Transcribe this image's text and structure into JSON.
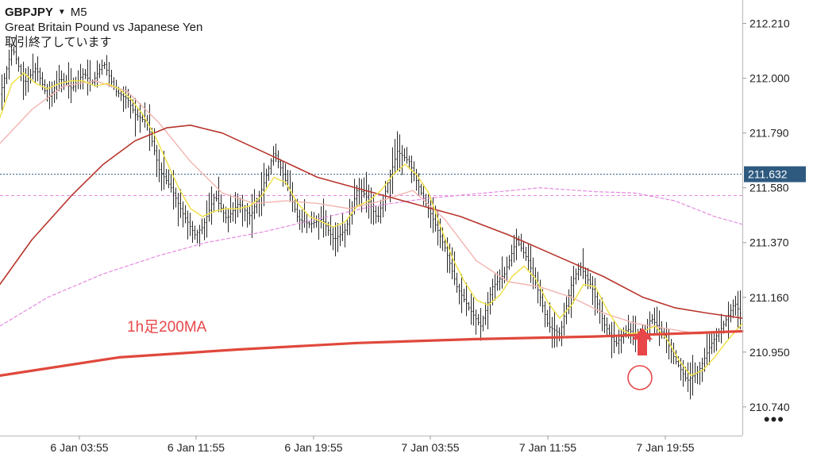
{
  "header": {
    "symbol": "GBPJPY",
    "dropdown_icon": "▼",
    "timeframe": "M5",
    "description": "Great Britain Pound vs Japanese Yen",
    "status": "取引終了しています"
  },
  "more_menu_icon": "•••",
  "annotation": {
    "ma_label": "1h足200MA",
    "arrow_icon": "up-arrow-icon",
    "marker_icon": "circle-marker-icon",
    "color": "#e8474a"
  },
  "colors": {
    "price_bars": "#2a2a2a",
    "ma_fast": "#f0e14a",
    "ma_medium": "#f2b5b0",
    "ma_slow": "#b8352c",
    "ma_1h200": "#e0483c",
    "pink_dashed": "#e48ae0",
    "current_price_line": "#2f5a80",
    "current_price_badge": "#2f5a80"
  },
  "chart_data": {
    "type": "line",
    "title": "GBPJPY M5",
    "ylim": [
      210.63,
      212.3
    ],
    "xlim": [
      0,
      935
    ],
    "y_ticks": [
      212.21,
      212.0,
      211.79,
      211.58,
      211.37,
      211.16,
      210.95,
      210.74
    ],
    "y_tick_labels": [
      "212.210",
      "212.000",
      "211.790",
      "211.580",
      "211.370",
      "211.160",
      "210.950",
      "210.740"
    ],
    "x_ticks": [
      100,
      247,
      395,
      542,
      690,
      838
    ],
    "x_tick_labels": [
      "6 Jan 03:55",
      "6 Jan 11:55",
      "6 Jan 19:55",
      "7 Jan 03:55",
      "7 Jan 11:55",
      "7 Jan 19:55"
    ],
    "current_price": 211.632,
    "current_price_label": "211.632",
    "pink_level": 211.55,
    "price_path": {
      "x": [
        0,
        15,
        30,
        45,
        60,
        75,
        90,
        105,
        115,
        130,
        145,
        160,
        170,
        185,
        200,
        215,
        230,
        245,
        255,
        270,
        285,
        300,
        315,
        330,
        345,
        360,
        375,
        390,
        405,
        420,
        435,
        450,
        460,
        475,
        490,
        500,
        515,
        530,
        545,
        560,
        575,
        590,
        605,
        620,
        635,
        650,
        665,
        680,
        690,
        705,
        720,
        730,
        745,
        760,
        775,
        790,
        805,
        820,
        835,
        850,
        865,
        880,
        895,
        910,
        925,
        935
      ],
      "y": [
        211.94,
        212.12,
        211.98,
        212.04,
        211.92,
        212.0,
        211.96,
        212.02,
        211.98,
        212.06,
        211.95,
        211.92,
        211.86,
        211.83,
        211.65,
        211.58,
        211.48,
        211.4,
        211.43,
        211.55,
        211.46,
        211.52,
        211.47,
        211.58,
        211.72,
        211.6,
        211.46,
        211.44,
        211.46,
        211.38,
        211.42,
        211.58,
        211.55,
        211.46,
        211.62,
        211.72,
        211.68,
        211.56,
        211.46,
        211.35,
        211.2,
        211.12,
        211.05,
        211.2,
        211.25,
        211.38,
        211.3,
        211.16,
        211.05,
        211.02,
        211.22,
        211.28,
        211.2,
        211.06,
        210.98,
        211.04,
        211.0,
        211.08,
        211.02,
        210.92,
        210.84,
        210.88,
        210.98,
        211.05,
        211.14,
        211.08
      ]
    },
    "series": [
      {
        "name": "1h足200MA",
        "color": "#e0483c",
        "x": [
          0,
          150,
          300,
          450,
          600,
          750,
          935
        ],
        "y": [
          210.86,
          210.93,
          210.96,
          210.985,
          211.0,
          211.01,
          211.03
        ]
      },
      {
        "color": "#b8352c",
        "x": [
          0,
          40,
          90,
          130,
          170,
          210,
          240,
          280,
          330,
          400,
          460,
          520,
          580,
          640,
          700,
          760,
          810,
          850,
          890,
          935
        ],
        "y": [
          211.21,
          211.38,
          211.55,
          211.67,
          211.76,
          211.81,
          211.82,
          211.79,
          211.72,
          211.62,
          211.57,
          211.52,
          211.47,
          211.4,
          211.32,
          211.24,
          211.16,
          211.12,
          211.1,
          211.08
        ]
      },
      {
        "color": "#e48ae0",
        "x": [
          0,
          60,
          130,
          200,
          260,
          330,
          400,
          470,
          540,
          610,
          680,
          750,
          800,
          850,
          900,
          935
        ],
        "y": [
          211.05,
          211.16,
          211.25,
          211.32,
          211.37,
          211.41,
          211.46,
          211.51,
          211.54,
          211.56,
          211.58,
          211.565,
          211.56,
          211.53,
          211.47,
          211.44
        ]
      },
      {
        "color": "#f2b5b0",
        "x": [
          0,
          40,
          80,
          120,
          160,
          200,
          240,
          280,
          320,
          360,
          400,
          440,
          480,
          520,
          560,
          600,
          640,
          680,
          720,
          760,
          800,
          840,
          880,
          935
        ],
        "y": [
          211.75,
          211.88,
          211.97,
          211.99,
          211.95,
          211.83,
          211.68,
          211.56,
          211.52,
          211.53,
          211.52,
          211.5,
          211.53,
          211.57,
          211.46,
          211.3,
          211.22,
          211.2,
          211.16,
          211.1,
          211.06,
          211.04,
          211.02,
          211.03
        ]
      },
      {
        "color": "#f0e14a",
        "x": [
          0,
          15,
          30,
          45,
          60,
          75,
          90,
          105,
          120,
          135,
          150,
          165,
          180,
          195,
          210,
          225,
          240,
          255,
          270,
          285,
          300,
          315,
          330,
          345,
          360,
          375,
          390,
          405,
          420,
          435,
          450,
          465,
          480,
          495,
          510,
          525,
          540,
          555,
          570,
          585,
          600,
          615,
          630,
          645,
          660,
          675,
          690,
          705,
          720,
          735,
          750,
          765,
          780,
          795,
          810,
          825,
          840,
          855,
          870,
          885,
          900,
          915,
          935
        ],
        "y": [
          211.85,
          211.98,
          212.02,
          211.98,
          211.96,
          211.98,
          211.99,
          211.99,
          211.97,
          211.98,
          211.96,
          211.92,
          211.86,
          211.78,
          211.68,
          211.58,
          211.5,
          211.47,
          211.49,
          211.5,
          211.5,
          211.51,
          211.55,
          211.62,
          211.6,
          211.52,
          211.47,
          211.45,
          211.43,
          211.45,
          211.51,
          211.53,
          211.57,
          211.63,
          211.67,
          211.63,
          211.56,
          211.43,
          211.31,
          211.22,
          211.15,
          211.13,
          211.17,
          211.24,
          211.28,
          211.23,
          211.14,
          211.08,
          211.13,
          211.21,
          211.2,
          211.11,
          211.04,
          211.02,
          211.03,
          211.05,
          211.0,
          210.92,
          210.86,
          210.88,
          210.93,
          210.99,
          211.06
        ]
      }
    ]
  }
}
